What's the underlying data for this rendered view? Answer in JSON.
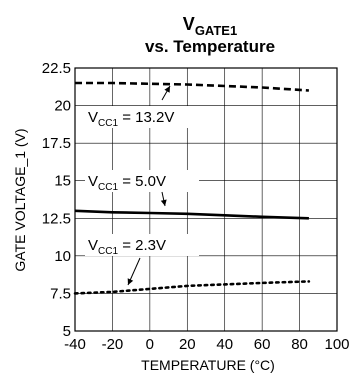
{
  "chart_data": {
    "type": "line",
    "title_main": "V",
    "title_sub": "GATE1",
    "subtitle": "vs. Temperature",
    "xlabel": "TEMPERATURE (°C)",
    "ylabel": "GATE VOLTAGE_1 (V)",
    "xlim": [
      -40,
      100
    ],
    "ylim": [
      5,
      22.5
    ],
    "x_ticks": [
      "-40",
      "-20",
      "0",
      "20",
      "40",
      "60",
      "80",
      "100"
    ],
    "y_ticks": [
      "5",
      "7.5",
      "10",
      "12.5",
      "15",
      "17.5",
      "20",
      "22.5"
    ],
    "grid": true,
    "series": [
      {
        "name": "VCC1 = 13.2V",
        "style": "dashed",
        "x": [
          -40,
          -20,
          0,
          20,
          40,
          60,
          85
        ],
        "y": [
          21.5,
          21.5,
          21.45,
          21.4,
          21.3,
          21.2,
          21.0
        ]
      },
      {
        "name": "VCC1 = 5.0V",
        "style": "solid",
        "x": [
          -40,
          -20,
          0,
          20,
          40,
          60,
          85
        ],
        "y": [
          13.0,
          12.9,
          12.85,
          12.8,
          12.7,
          12.6,
          12.5
        ]
      },
      {
        "name": "VCC1 = 2.3V",
        "style": "dotted",
        "x": [
          -40,
          -20,
          0,
          20,
          40,
          60,
          85
        ],
        "y": [
          7.5,
          7.6,
          7.8,
          8.0,
          8.1,
          8.2,
          8.3
        ]
      }
    ],
    "annotations": [
      {
        "prefix": "V",
        "sub": "CC1",
        "suffix": " = 13.2V",
        "series": 0
      },
      {
        "prefix": "V",
        "sub": "CC1",
        "suffix": " = 5.0V",
        "series": 1
      },
      {
        "prefix": "V",
        "sub": "CC1",
        "suffix": " = 2.3V",
        "series": 2
      }
    ]
  }
}
